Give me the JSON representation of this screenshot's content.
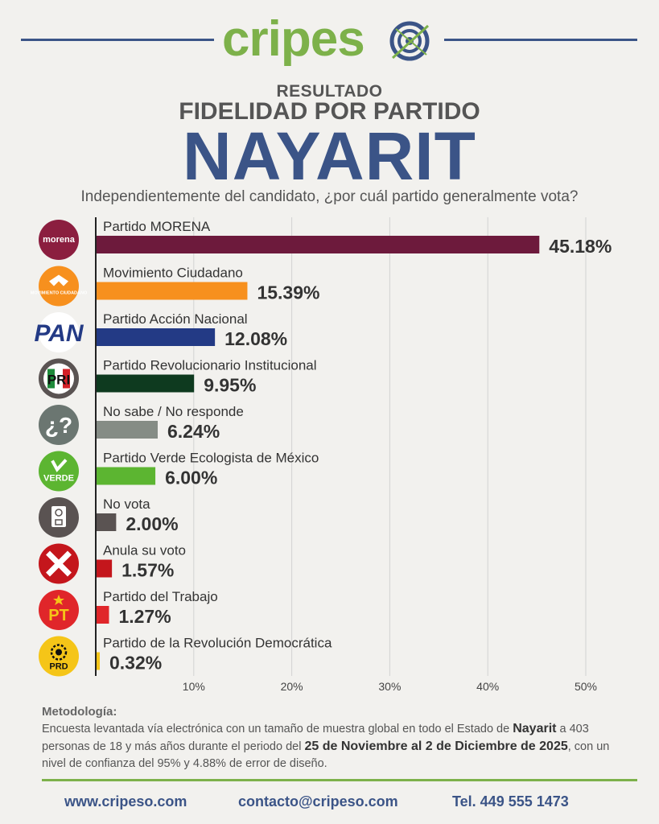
{
  "brand": {
    "logo_part1": "cripes",
    "logo_part2": "o"
  },
  "header": {
    "line1": "RESULTADO",
    "line2": "FIDELIDAD POR PARTIDO",
    "title": "NAYARIT",
    "question": "Independientemente del candidato, ¿por cuál partido generalmente vota?"
  },
  "chart_data": {
    "type": "bar",
    "orientation": "horizontal",
    "grid": true,
    "xlim": [
      0,
      50
    ],
    "ticks": [
      "10%",
      "20%",
      "30%",
      "40%",
      "50%"
    ],
    "tick_values": [
      10,
      20,
      30,
      40,
      50
    ],
    "categories": [
      "Partido MORENA",
      "Movimiento Ciudadano",
      "Partido Acción Nacional",
      "Partido Revolucionario Institucional",
      "No sabe / No responde",
      "Partido Verde Ecologista de México",
      "No vota",
      "Anula su voto",
      "Partido del Trabajo",
      "Partido de la Revolución Democrática"
    ],
    "values": [
      45.18,
      15.39,
      12.08,
      9.95,
      6.24,
      6.0,
      2.0,
      1.57,
      1.27,
      0.32
    ],
    "value_labels": [
      "45.18%",
      "15.39%",
      "12.08%",
      "9.95%",
      "6.24%",
      "6.00%",
      "2.00%",
      "1.57%",
      "1.27%",
      "0.32%"
    ],
    "colors": [
      "#6d1a3c",
      "#f7901e",
      "#233a85",
      "#0e3a1f",
      "#858c85",
      "#5cb531",
      "#5a5352",
      "#c4161c",
      "#e0262a",
      "#f5c518"
    ],
    "icons": [
      {
        "name": "morena-logo-icon",
        "bg": "#8b1e3f",
        "text": "morena"
      },
      {
        "name": "movimiento-ciudadano-logo-icon",
        "bg": "#f7901e",
        "text": "MOVIMIENTO CIUDADANO"
      },
      {
        "name": "pan-logo-icon",
        "bg": "#ffffff",
        "text": "PAN"
      },
      {
        "name": "pri-logo-icon",
        "bg": "#5a5352",
        "text": "PRI"
      },
      {
        "name": "question-icon",
        "bg": "#6b7671",
        "text": "¿?"
      },
      {
        "name": "verde-logo-icon",
        "bg": "#5cb531",
        "text": "VERDE"
      },
      {
        "name": "ballot-icon",
        "bg": "#5a5352",
        "text": ""
      },
      {
        "name": "cross-icon",
        "bg": "#c4161c",
        "text": ""
      },
      {
        "name": "pt-logo-icon",
        "bg": "#e0262a",
        "text": "PT"
      },
      {
        "name": "prd-logo-icon",
        "bg": "#f5c518",
        "text": "PRD"
      }
    ]
  },
  "methodology": {
    "title": "Metodología:",
    "t1": "Encuesta levantada vía electrónica con un tamaño de muestra global en todo el Estado de ",
    "b1": "Nayarit",
    "t2": " a 403 personas de 18 y más años durante el periodo del ",
    "b2": "25 de Noviembre al 2 de Diciembre de 2025",
    "t3": ", con un nivel de confianza del 95% y 4.88% de error de diseño."
  },
  "footer": {
    "website": "www.cripeso.com",
    "email": "contacto@cripeso.com",
    "phone": "Tel. 449 555 1473"
  },
  "colors": {
    "brand_blue": "#3b5487",
    "brand_green": "#7db14a"
  }
}
